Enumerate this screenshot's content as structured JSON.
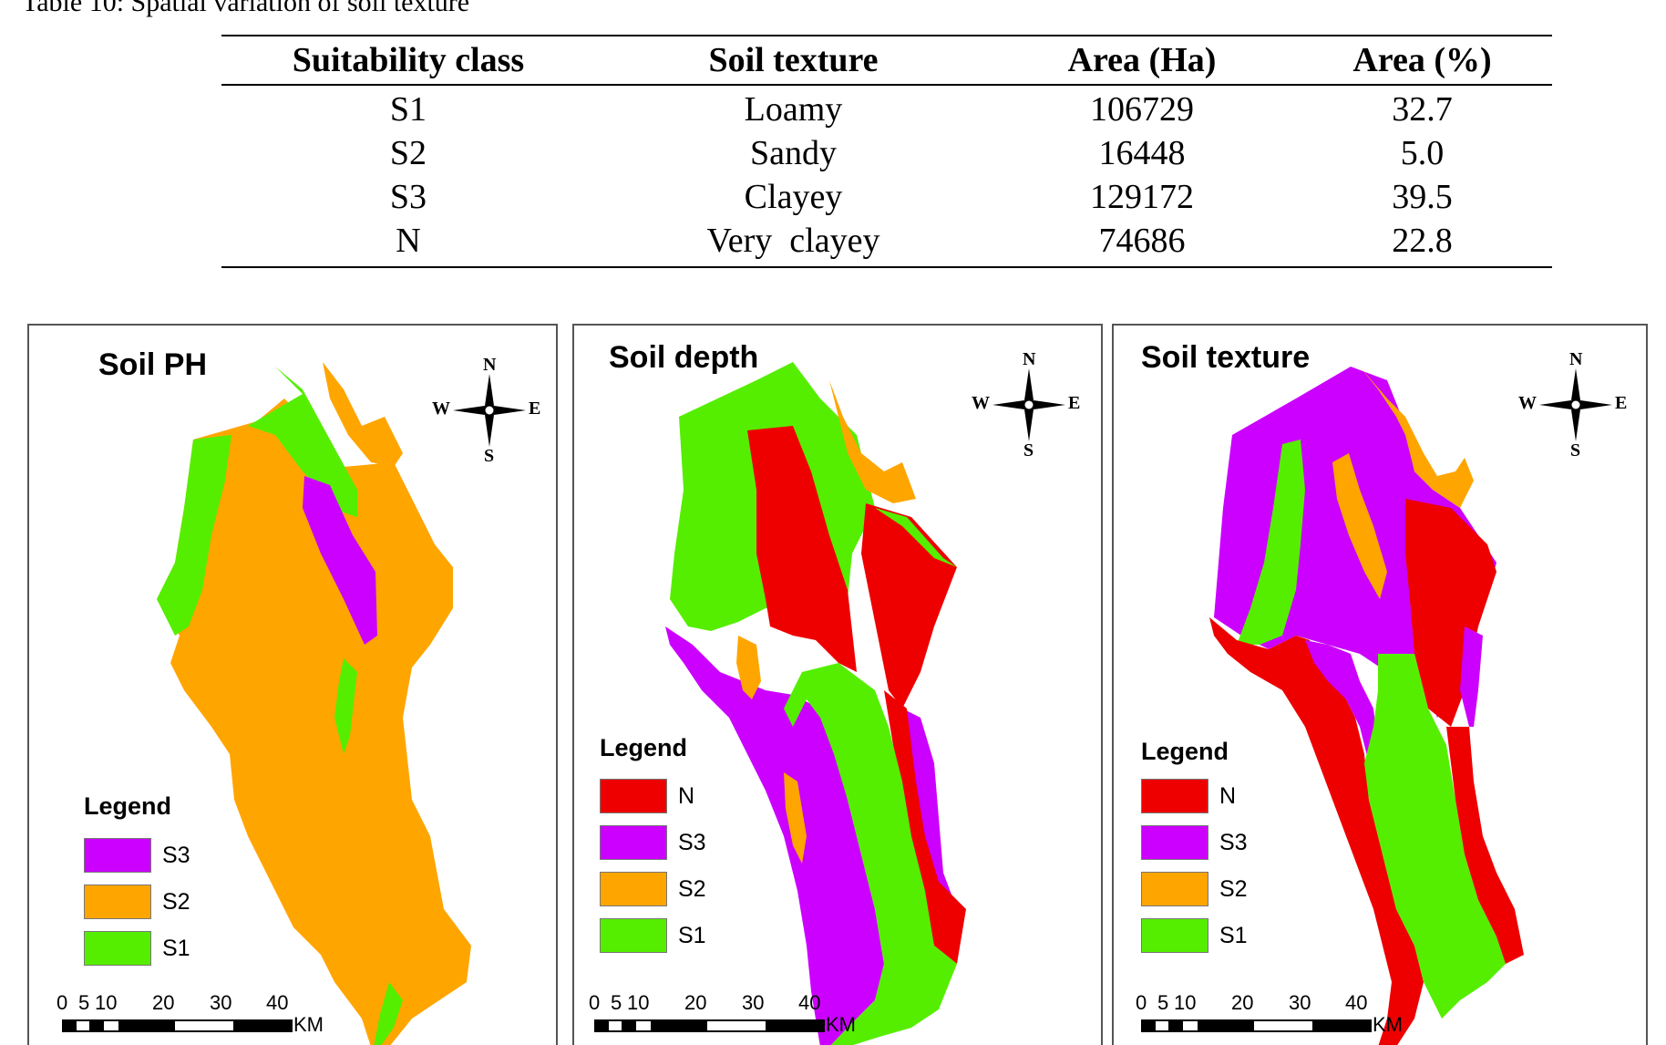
{
  "caption": "Table 10: Spatial variation of soil texture",
  "table": {
    "headers": [
      "Suitability class",
      "Soil texture",
      "Area (Ha)",
      "Area (%)"
    ],
    "rows": [
      [
        "S1",
        "Loamy",
        "106729",
        "32.7"
      ],
      [
        "S2",
        "Sandy",
        "16448",
        "5.0"
      ],
      [
        "S3",
        "Clayey",
        "129172",
        "39.5"
      ],
      [
        "N",
        "Very  clayey",
        "74686",
        "22.8"
      ]
    ]
  },
  "colors": {
    "N": "#ee0000",
    "S3": "#cc00ff",
    "S2": "#ffa500",
    "S1": "#55ee00"
  },
  "maps": [
    {
      "title": "Soil PH",
      "legend_title": "Legend",
      "legend": [
        "S3",
        "S2",
        "S1"
      ]
    },
    {
      "title": "Soil depth",
      "legend_title": "Legend",
      "legend": [
        "N",
        "S3",
        "S2",
        "S1"
      ]
    },
    {
      "title": "Soil texture",
      "legend_title": "Legend",
      "legend": [
        "N",
        "S3",
        "S2",
        "S1"
      ]
    }
  ],
  "compass": {
    "n": "N",
    "s": "S",
    "e": "E",
    "w": "W"
  },
  "scale": {
    "ticks": [
      "0",
      "5",
      "10",
      "20",
      "30",
      "40"
    ],
    "unit": "KM"
  }
}
